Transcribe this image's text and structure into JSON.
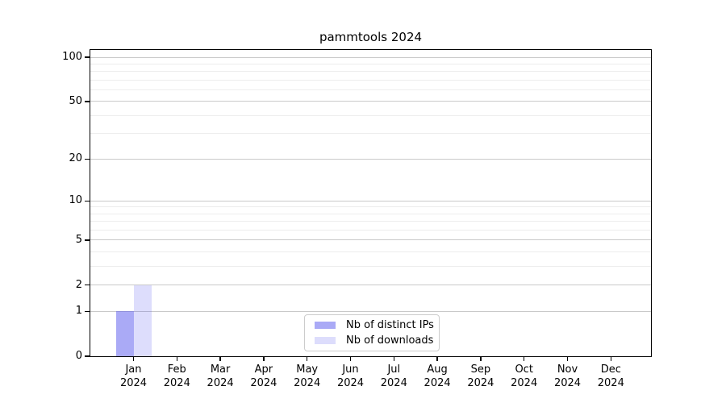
{
  "chart_data": {
    "type": "bar",
    "title": "pammtools 2024",
    "x": {
      "months": [
        "Jan",
        "Feb",
        "Mar",
        "Apr",
        "May",
        "Jun",
        "Jul",
        "Aug",
        "Sep",
        "Oct",
        "Nov",
        "Dec"
      ],
      "year": "2024"
    },
    "series": [
      {
        "name": "Nb of distinct IPs",
        "color": "rgba(85,85,238,0.5)",
        "values": [
          1,
          0,
          0,
          0,
          0,
          0,
          0,
          0,
          0,
          0,
          0,
          0
        ]
      },
      {
        "name": "Nb of downloads",
        "color": "rgba(85,85,238,0.2)",
        "values": [
          2,
          0,
          0,
          0,
          0,
          0,
          0,
          0,
          0,
          0,
          0,
          0
        ]
      }
    ],
    "y_axis": {
      "scale": "log1p",
      "limits": [
        0,
        112
      ],
      "tick_values": [
        0,
        1,
        2,
        5,
        10,
        20,
        50,
        100
      ],
      "major_gridlines": [
        1,
        2,
        5,
        10,
        20,
        50,
        100
      ],
      "minor_gridlines": [
        3,
        4,
        6,
        7,
        8,
        9,
        30,
        40,
        60,
        70,
        80,
        90
      ]
    },
    "legend": {
      "position": "bottom-center"
    },
    "grid": true
  },
  "colors": {
    "grid_major": "#c9c9c9",
    "grid_minor": "#ededed",
    "axis": "#000000",
    "background": "#ffffff",
    "legend_border": "#cccccc"
  }
}
